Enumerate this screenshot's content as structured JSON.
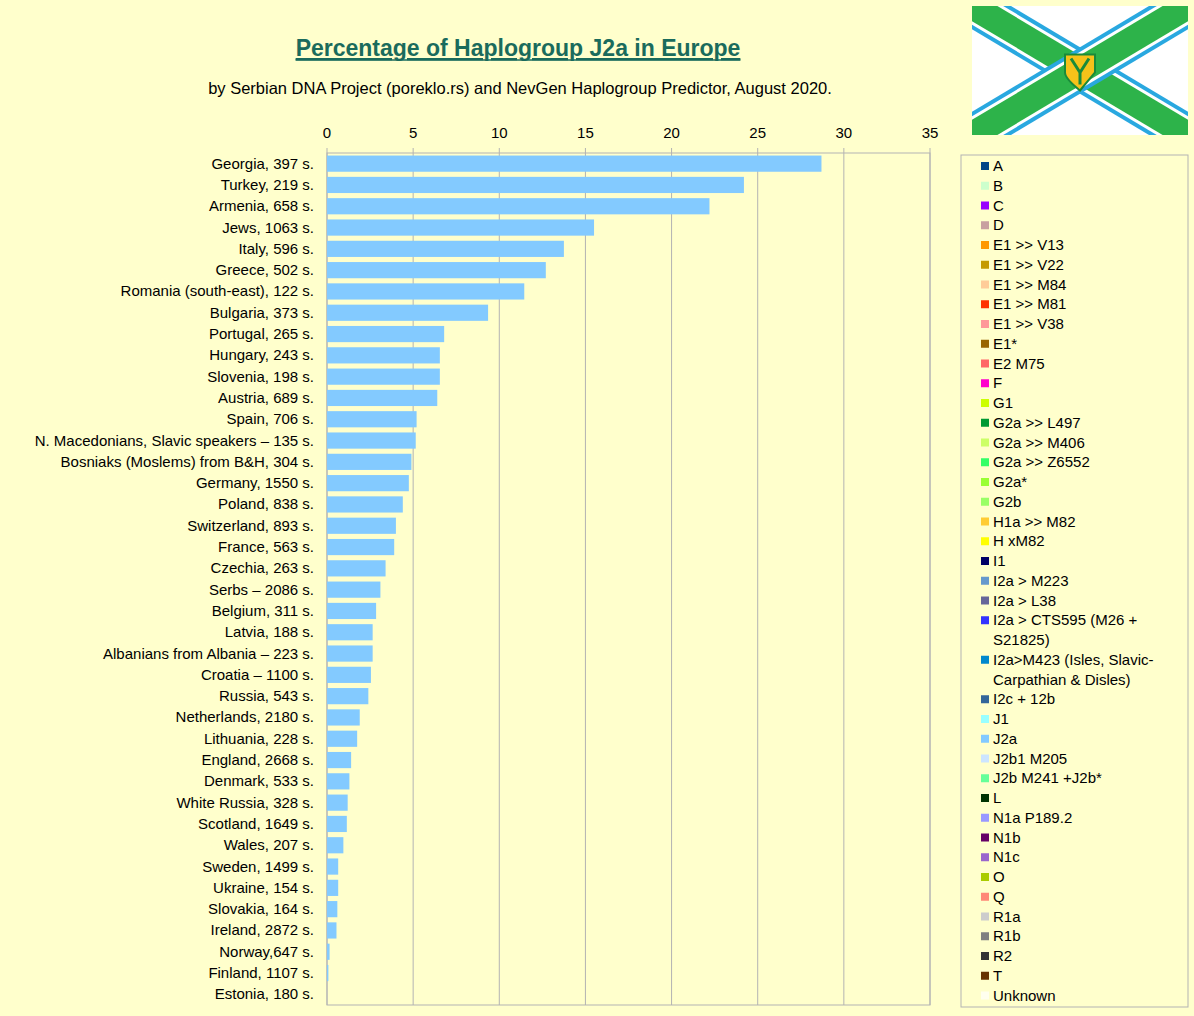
{
  "chart_data": {
    "type": "bar",
    "orientation": "horizontal",
    "title": "Percentage of Haplogroup J2a in Europe",
    "subtitle": "by Serbian DNA Project (poreklo.rs) and NevGen Haplogroup Predictor, August 2020.",
    "categories": [
      "Georgia, 397 s.",
      "Turkey, 219 s.",
      "Armenia, 658 s.",
      "Jews, 1063 s.",
      "Italy, 596 s.",
      "Greece, 502 s.",
      "Romania (south-east), 122 s.",
      "Bulgaria, 373 s.",
      "Portugal, 265 s.",
      "Hungary, 243 s.",
      "Slovenia, 198 s.",
      "Austria, 689 s.",
      "Spain, 706 s.",
      "N. Macedonians, Slavic speakers – 135 s.",
      "Bosniaks (Moslems) from B&H, 304 s.",
      "Germany, 1550 s.",
      "Poland, 838 s.",
      "Switzerland, 893 s.",
      "France, 563 s.",
      "Czechia, 263 s.",
      "Serbs – 2086 s.",
      "Belgium, 311 s.",
      "Latvia, 188 s.",
      "Albanians from Albania – 223 s.",
      "Croatia – 1100 s.",
      "Russia, 543 s.",
      "Netherlands, 2180 s.",
      "Lithuania, 228 s.",
      "England, 2668 s.",
      "Denmark, 533 s.",
      "White Russia, 328 s.",
      "Scotland, 1649 s.",
      "Wales, 207 s.",
      "Sweden, 1499 s.",
      "Ukraine, 154 s.",
      "Slovakia, 164 s.",
      "Ireland, 2872 s.",
      "Norway,647 s.",
      "Finland, 1107 s.",
      "Estonia, 180 s."
    ],
    "values": [
      28.7,
      24.2,
      22.2,
      15.5,
      13.75,
      12.7,
      11.45,
      9.35,
      6.8,
      6.55,
      6.55,
      6.4,
      5.2,
      5.15,
      4.9,
      4.75,
      4.4,
      4.0,
      3.9,
      3.4,
      3.1,
      2.85,
      2.65,
      2.65,
      2.55,
      2.4,
      1.9,
      1.75,
      1.4,
      1.3,
      1.2,
      1.15,
      0.95,
      0.65,
      0.65,
      0.6,
      0.55,
      0.15,
      0.08,
      0
    ],
    "color": "#83caff",
    "xlim": [
      0,
      35
    ],
    "xticks": [
      0,
      5,
      10,
      15,
      20,
      25,
      30,
      35
    ],
    "grid": true,
    "legend": "right",
    "legend_items": [
      {
        "name": "A",
        "color": "#004586"
      },
      {
        "name": "B",
        "color": "#ccffcc"
      },
      {
        "name": "C",
        "color": "#9900ff"
      },
      {
        "name": "D",
        "color": "#c9a0a0"
      },
      {
        "name": "E1 >> V13",
        "color": "#ff9900"
      },
      {
        "name": "E1 >> V22",
        "color": "#c49a00"
      },
      {
        "name": "E1 >> M84",
        "color": "#ffcc99"
      },
      {
        "name": "E1 >> M81",
        "color": "#ff3300"
      },
      {
        "name": "E1 >> V38",
        "color": "#ff9999"
      },
      {
        "name": "E1*",
        "color": "#996600"
      },
      {
        "name": "E2 M75",
        "color": "#ff6666"
      },
      {
        "name": "F",
        "color": "#ff00cc"
      },
      {
        "name": "G1",
        "color": "#ccff00"
      },
      {
        "name": "G2a >> L497",
        "color": "#009933"
      },
      {
        "name": "G2a >> M406",
        "color": "#ccff66"
      },
      {
        "name": "G2a >> Z6552",
        "color": "#33ff66"
      },
      {
        "name": "G2a*",
        "color": "#99ff33"
      },
      {
        "name": "G2b",
        "color": "#99ff66"
      },
      {
        "name": "H1a >> M82",
        "color": "#ffcc33"
      },
      {
        "name": "H xM82",
        "color": "#ffff00"
      },
      {
        "name": "I1",
        "color": "#000066"
      },
      {
        "name": "I2a > M223",
        "color": "#6699cc"
      },
      {
        "name": "I2a > L38",
        "color": "#666699"
      },
      {
        "name": "I2a > CTS595 (M26 + S21825)",
        "color": "#3333ff"
      },
      {
        "name": "I2a>M423 (Isles, Slavic-Carpathian & Disles)",
        "color": "#0088cc"
      },
      {
        "name": "I2c + 12b",
        "color": "#336699"
      },
      {
        "name": "J1",
        "color": "#99ffff"
      },
      {
        "name": "J2a",
        "color": "#83caff"
      },
      {
        "name": "J2b1 M205",
        "color": "#cce5ff"
      },
      {
        "name": "J2b M241 +J2b*",
        "color": "#66ff99"
      },
      {
        "name": "L",
        "color": "#003300"
      },
      {
        "name": "N1a P189.2",
        "color": "#9999ff"
      },
      {
        "name": "N1b",
        "color": "#660066"
      },
      {
        "name": "N1c",
        "color": "#9966cc"
      },
      {
        "name": "O",
        "color": "#aacc00"
      },
      {
        "name": "Q",
        "color": "#ff8877"
      },
      {
        "name": "R1a",
        "color": "#cccccc"
      },
      {
        "name": "R1b",
        "color": "#808080"
      },
      {
        "name": "R2",
        "color": "#333333"
      },
      {
        "name": "T",
        "color": "#663300"
      },
      {
        "name": "Unknown",
        "color": "#ffffee"
      }
    ]
  }
}
